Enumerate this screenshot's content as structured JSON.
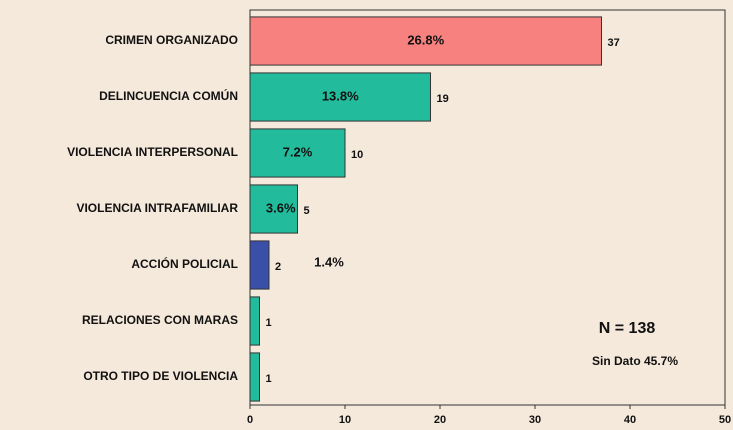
{
  "chart_data": {
    "type": "barh",
    "categories": [
      "CRIMEN ORGANIZADO",
      "DELINCUENCIA COMÚN",
      "VIOLENCIA INTERPERSONAL",
      "VIOLENCIA INTRAFAMILIAR",
      "ACCIÓN POLICIAL",
      "RELACIONES CON MARAS",
      "OTRO TIPO DE VIOLENCIA"
    ],
    "values": [
      37,
      19,
      10,
      5,
      2,
      1,
      1
    ],
    "colors": [
      "#f6817f",
      "#22bc9c",
      "#22bc9c",
      "#22bc9c",
      "#3a4fa8",
      "#22bc9c",
      "#22bc9c"
    ],
    "share_labels": [
      "26.8%",
      "13.8%",
      "7.2%",
      "3.6%",
      "1.4%",
      null,
      null
    ],
    "xlim": [
      0,
      50
    ],
    "xticks": [
      0,
      10,
      20,
      30,
      40,
      50
    ],
    "annotations": [
      "N = 138",
      "Sin Dato 45.7%"
    ]
  }
}
